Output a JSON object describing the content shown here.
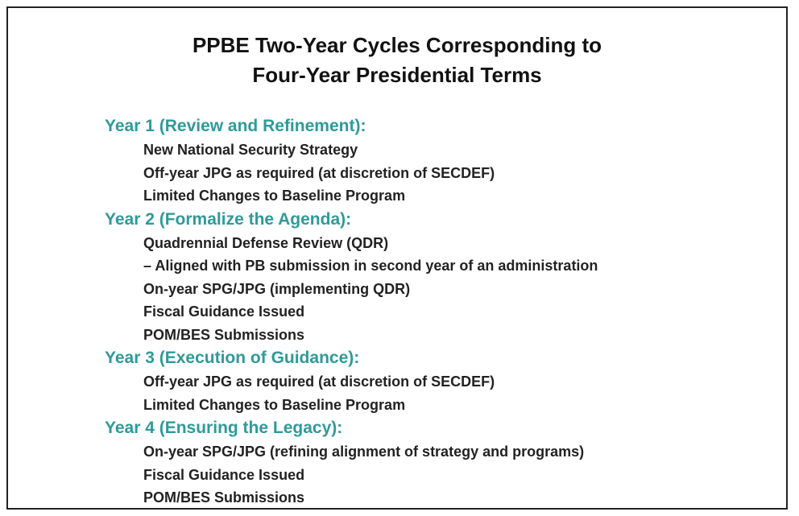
{
  "title": [
    "PPBE Two-Year Cycles Corresponding to",
    "Four-Year Presidential Terms"
  ],
  "sections": [
    {
      "heading": "Year 1 (Review and Refinement):",
      "items": [
        "New National Security Strategy",
        "Off-year JPG as required (at discretion of SECDEF)",
        "Limited Changes to Baseline Program"
      ]
    },
    {
      "heading": "Year 2 (Formalize the Agenda):",
      "items": [
        "Quadrennial Defense Review (QDR)",
        "– Aligned with PB submission in second year of an administration",
        "On-year SPG/JPG (implementing QDR)",
        "Fiscal Guidance Issued",
        "POM/BES Submissions"
      ]
    },
    {
      "heading": "Year 3 (Execution of Guidance):",
      "items": [
        "Off-year JPG as required (at discretion of SECDEF)",
        "Limited Changes to Baseline Program"
      ]
    },
    {
      "heading": "Year 4 (Ensuring the Legacy):",
      "items": [
        "On-year SPG/JPG (refining alignment of strategy and programs)",
        "Fiscal Guidance Issued",
        "POM/BES Submissions"
      ]
    }
  ]
}
